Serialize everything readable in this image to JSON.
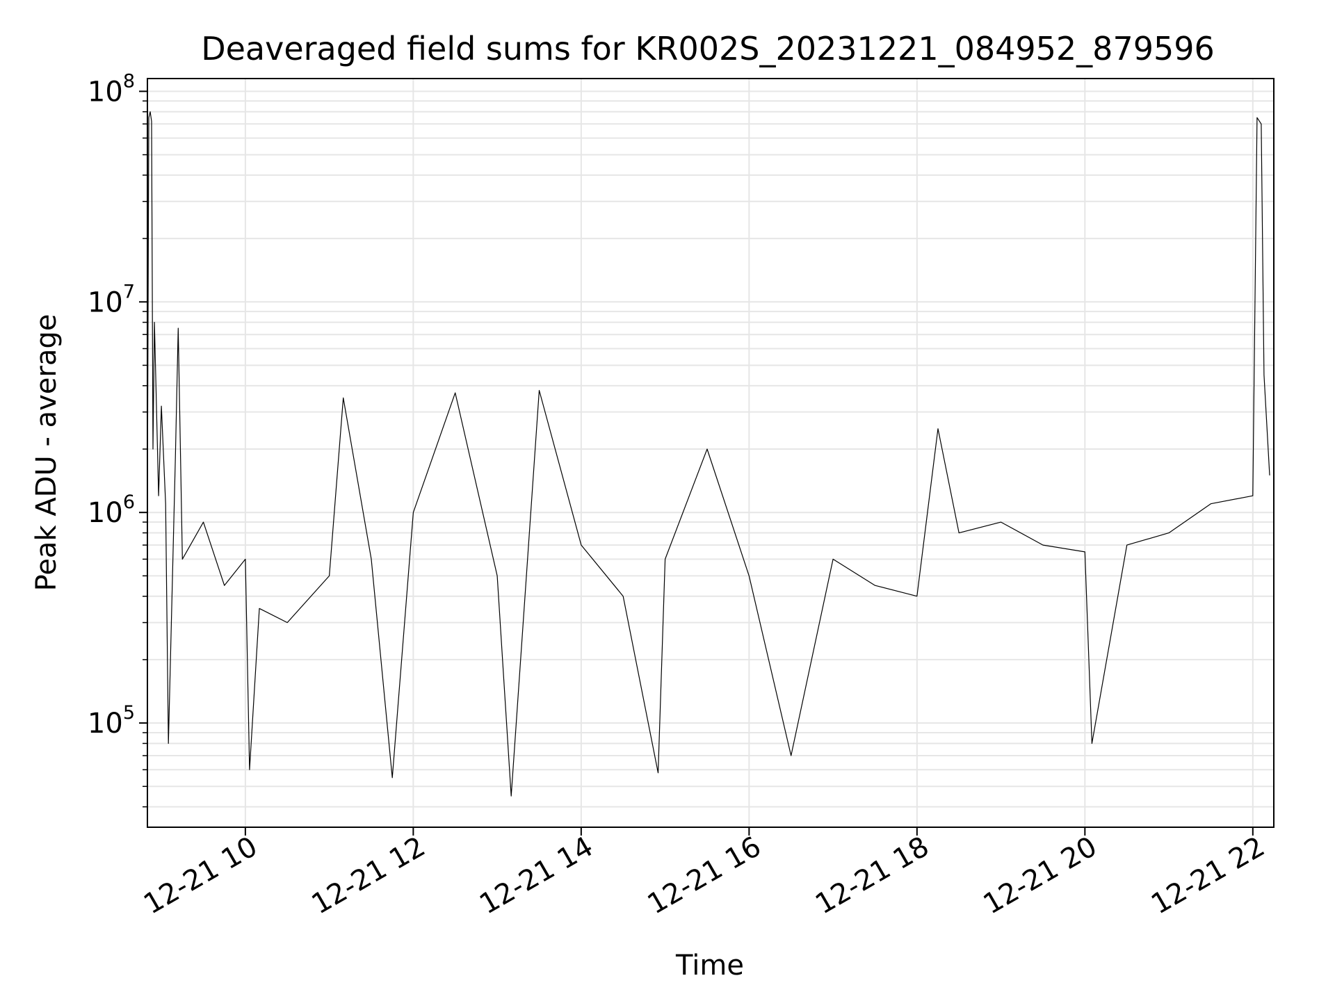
{
  "chart_data": {
    "type": "line",
    "title": "Deaveraged field sums for KR002S_20231221_084952_879596",
    "xlabel": "Time",
    "ylabel": "Peak ADU - average",
    "y_scale": "log",
    "ylim": [
      32000,
      115000000
    ],
    "xlim": [
      "12-21 08:50",
      "12-21 22:15"
    ],
    "x_ticks": [
      {
        "t": "12-21 10:00",
        "label": "12-21 10"
      },
      {
        "t": "12-21 12:00",
        "label": "12-21 12"
      },
      {
        "t": "12-21 14:00",
        "label": "12-21 14"
      },
      {
        "t": "12-21 16:00",
        "label": "12-21 16"
      },
      {
        "t": "12-21 18:00",
        "label": "12-21 18"
      },
      {
        "t": "12-21 20:00",
        "label": "12-21 20"
      },
      {
        "t": "12-21 22:00",
        "label": "12-21 22"
      }
    ],
    "y_ticks": [
      {
        "value": 100000,
        "base": "10",
        "exp": "5"
      },
      {
        "value": 1000000,
        "base": "10",
        "exp": "6"
      },
      {
        "value": 10000000,
        "base": "10",
        "exp": "7"
      },
      {
        "value": 100000000,
        "base": "10",
        "exp": "8"
      }
    ],
    "grid": true,
    "line_color": "#000000",
    "series": [
      {
        "points": [
          [
            "12-21 08:50",
            1100000
          ],
          [
            "12-21 08:51",
            75000000
          ],
          [
            "12-21 08:52",
            80000000
          ],
          [
            "12-21 08:53",
            72000000
          ],
          [
            "12-21 08:54",
            2000000
          ],
          [
            "12-21 08:55",
            8000000
          ],
          [
            "12-21 08:58",
            1200000
          ],
          [
            "12-21 09:00",
            3200000
          ],
          [
            "12-21 09:03",
            1100000
          ],
          [
            "12-21 09:05",
            80000
          ],
          [
            "12-21 09:10",
            1800000
          ],
          [
            "12-21 09:12",
            7500000
          ],
          [
            "12-21 09:15",
            600000
          ],
          [
            "12-21 09:30",
            900000
          ],
          [
            "12-21 09:45",
            450000
          ],
          [
            "12-21 10:00",
            600000
          ],
          [
            "12-21 10:03",
            60000
          ],
          [
            "12-21 10:10",
            350000
          ],
          [
            "12-21 10:30",
            300000
          ],
          [
            "12-21 11:00",
            500000
          ],
          [
            "12-21 11:10",
            3500000
          ],
          [
            "12-21 11:30",
            600000
          ],
          [
            "12-21 11:45",
            55000
          ],
          [
            "12-21 12:00",
            1000000
          ],
          [
            "12-21 12:30",
            3700000
          ],
          [
            "12-21 13:00",
            500000
          ],
          [
            "12-21 13:10",
            45000
          ],
          [
            "12-21 13:30",
            3800000
          ],
          [
            "12-21 14:00",
            700000
          ],
          [
            "12-21 14:30",
            400000
          ],
          [
            "12-21 14:55",
            58000
          ],
          [
            "12-21 15:00",
            600000
          ],
          [
            "12-21 15:30",
            2000000
          ],
          [
            "12-21 16:00",
            500000
          ],
          [
            "12-21 16:30",
            70000
          ],
          [
            "12-21 17:00",
            600000
          ],
          [
            "12-21 17:30",
            450000
          ],
          [
            "12-21 18:00",
            400000
          ],
          [
            "12-21 18:15",
            2500000
          ],
          [
            "12-21 18:30",
            800000
          ],
          [
            "12-21 19:00",
            900000
          ],
          [
            "12-21 19:30",
            700000
          ],
          [
            "12-21 20:00",
            650000
          ],
          [
            "12-21 20:05",
            80000
          ],
          [
            "12-21 20:30",
            700000
          ],
          [
            "12-21 21:00",
            800000
          ],
          [
            "12-21 21:30",
            1100000
          ],
          [
            "12-21 22:00",
            1200000
          ],
          [
            "12-21 22:03",
            75000000
          ],
          [
            "12-21 22:06",
            70000000
          ],
          [
            "12-21 22:08",
            4500000
          ],
          [
            "12-21 22:12",
            1500000
          ]
        ]
      }
    ]
  }
}
